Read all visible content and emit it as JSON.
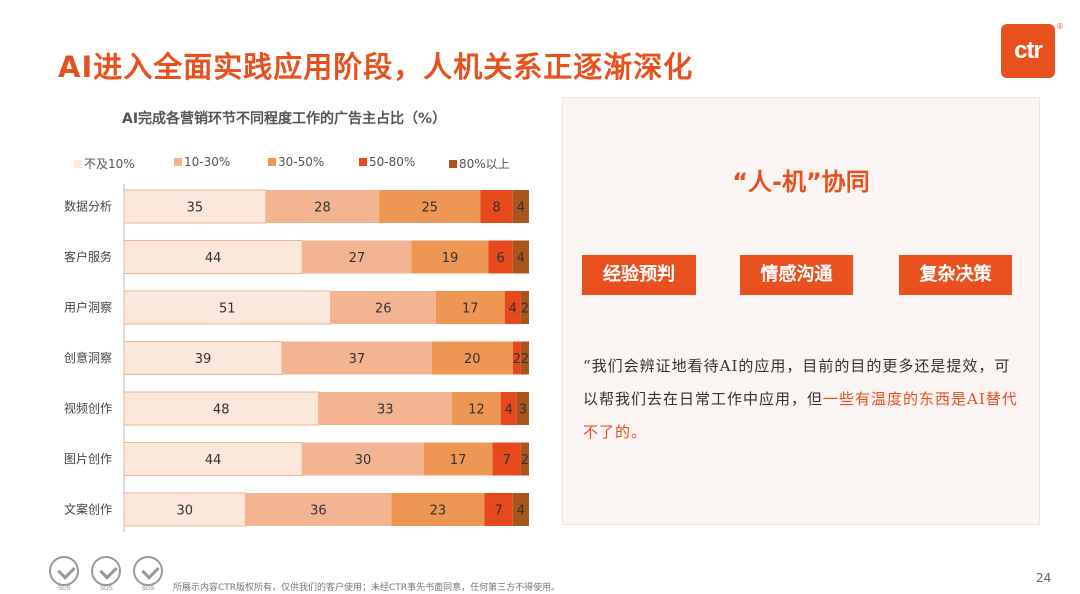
{
  "header": {
    "title": "AI进入全面实践应用阶段，人机关系正逐渐深化",
    "logo_text": "ctr",
    "logo_reg": "®"
  },
  "chart_data": {
    "type": "bar",
    "orientation": "horizontal",
    "stacked": true,
    "title": "AI完成各营销环节不同程度工作的广告主占比（%）",
    "categories": [
      "数据分析",
      "客户服务",
      "用户洞察",
      "创意洞察",
      "视频创作",
      "图片创作",
      "文案创作"
    ],
    "series": [
      {
        "name": "不及10%",
        "color": "#fbe7dc",
        "values": [
          35,
          44,
          51,
          39,
          48,
          44,
          30
        ]
      },
      {
        "name": "10-30%",
        "color": "#f2b491",
        "values": [
          28,
          27,
          26,
          37,
          33,
          30,
          36
        ]
      },
      {
        "name": "30-50%",
        "color": "#ee9653",
        "values": [
          25,
          19,
          17,
          20,
          12,
          17,
          23
        ]
      },
      {
        "name": "50-80%",
        "color": "#e64a1c",
        "values": [
          8,
          6,
          4,
          2,
          4,
          7,
          7
        ]
      },
      {
        "name": "80%以上",
        "color": "#a9561d",
        "values": [
          4,
          4,
          2,
          2,
          3,
          2,
          4
        ]
      }
    ],
    "legend_position": "top",
    "grid": false
  },
  "panel": {
    "title": "“人-机”协同",
    "tags": [
      "经验预判",
      "情感沟通",
      "复杂决策"
    ],
    "quote_normal": "“我们会辨证地看待AI的应用，目前的目的更多还是提效，可以帮我们去在日常工作中应用，但",
    "quote_highlight": "一些有温度的东西是AI替代不了的。"
  },
  "footer": {
    "seal_text": "SGS",
    "note": "所展示内容CTR版权所有，仅供我们的客户使用；未经CTR事先书面同意，任何第三方不得使用。",
    "page_number": "24"
  }
}
